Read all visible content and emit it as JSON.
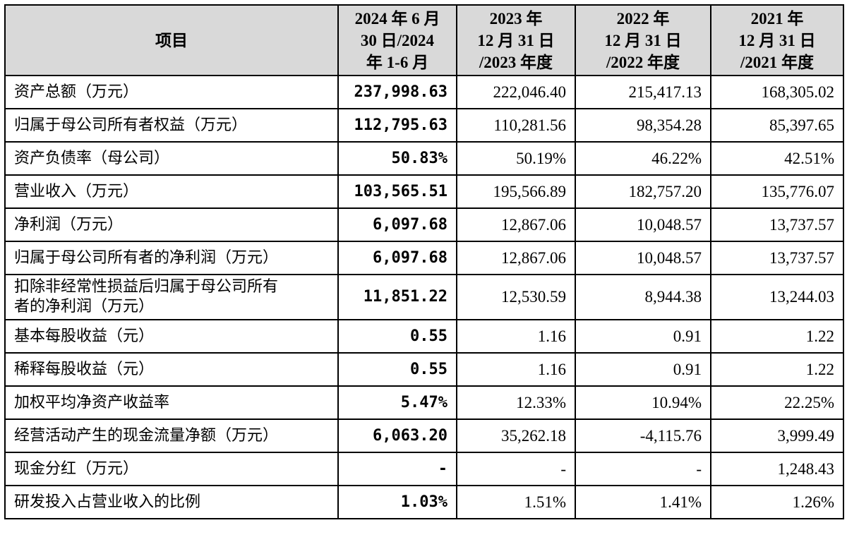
{
  "table": {
    "headers": [
      "项目",
      "2024年6月\n30日/2024\n年1-6月",
      "2023年\n12月31日\n/2023年度",
      "2022年\n12月31日\n/2022年度",
      "2021年\n12月31日\n/2021年度"
    ],
    "header_lines": [
      [
        "项目"
      ],
      [
        "2024 年 6 月",
        "30 日/2024",
        "年 1-6 月"
      ],
      [
        "2023 年",
        "12 月 31 日",
        "/2023 年度"
      ],
      [
        "2022 年",
        "12 月 31 日",
        "/2022 年度"
      ],
      [
        "2021 年",
        "12 月 31 日",
        "/2021 年度"
      ]
    ],
    "rows": [
      {
        "label": "资产总额（万元）",
        "values": [
          "237,998.63",
          "222,046.40",
          "215,417.13",
          "168,305.02"
        ]
      },
      {
        "label": "归属于母公司所有者权益（万元）",
        "values": [
          "112,795.63",
          "110,281.56",
          "98,354.28",
          "85,397.65"
        ]
      },
      {
        "label": "资产负债率（母公司）",
        "values": [
          "50.83%",
          "50.19%",
          "46.22%",
          "42.51%"
        ]
      },
      {
        "label": "营业收入（万元）",
        "values": [
          "103,565.51",
          "195,566.89",
          "182,757.20",
          "135,776.07"
        ]
      },
      {
        "label": "净利润（万元）",
        "values": [
          "6,097.68",
          "12,867.06",
          "10,048.57",
          "13,737.57"
        ]
      },
      {
        "label": "归属于母公司所有者的净利润（万元）",
        "values": [
          "6,097.68",
          "12,867.06",
          "10,048.57",
          "13,737.57"
        ]
      },
      {
        "label": "扣除非经常性损益后归属于母公司所有者的净利润（万元）",
        "label_lines": [
          "扣除非经常性损益后归属于母公司所有",
          "者的净利润（万元）"
        ],
        "values": [
          "11,851.22",
          "12,530.59",
          "8,944.38",
          "13,244.03"
        ]
      },
      {
        "label": "基本每股收益（元）",
        "values": [
          "0.55",
          "1.16",
          "0.91",
          "1.22"
        ]
      },
      {
        "label": "稀释每股收益（元）",
        "values": [
          "0.55",
          "1.16",
          "0.91",
          "1.22"
        ]
      },
      {
        "label": "加权平均净资产收益率",
        "values": [
          "5.47%",
          "12.33%",
          "10.94%",
          "22.25%"
        ]
      },
      {
        "label": "经营活动产生的现金流量净额（万元）",
        "values": [
          "6,063.20",
          "35,262.18",
          "-4,115.76",
          "3,999.49"
        ]
      },
      {
        "label": "现金分红（万元）",
        "values": [
          "-",
          "-",
          "-",
          "1,248.43"
        ]
      },
      {
        "label": "研发投入占营业收入的比例",
        "values": [
          "1.03%",
          "1.51%",
          "1.41%",
          "1.26%"
        ]
      }
    ]
  }
}
